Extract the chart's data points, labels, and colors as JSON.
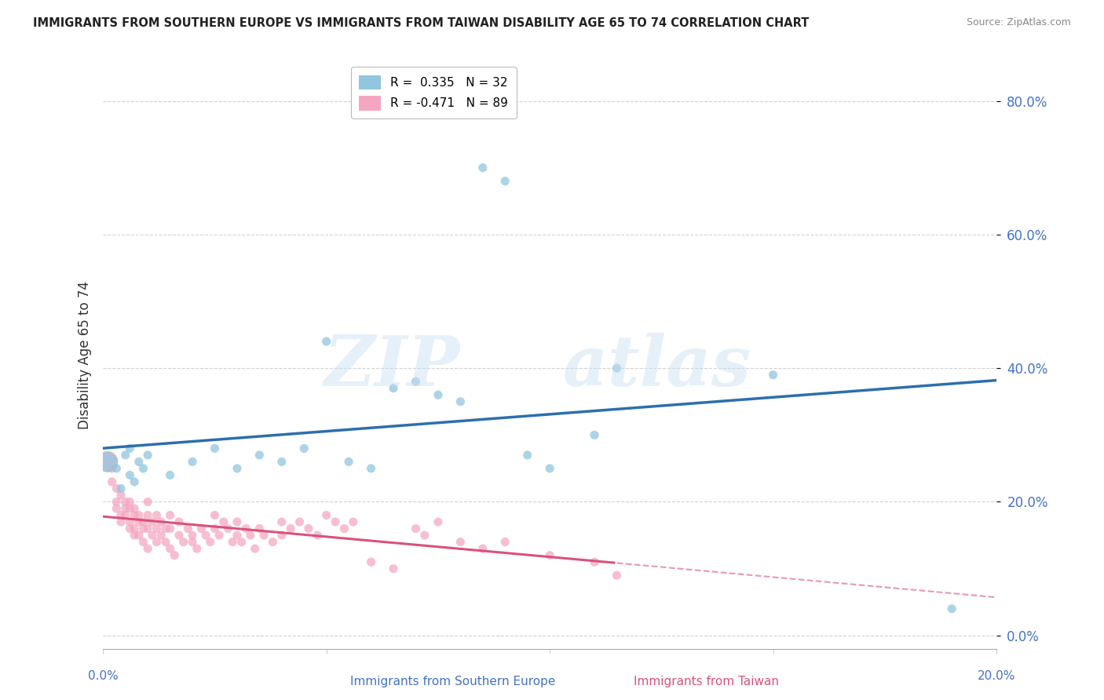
{
  "title": "IMMIGRANTS FROM SOUTHERN EUROPE VS IMMIGRANTS FROM TAIWAN DISABILITY AGE 65 TO 74 CORRELATION CHART",
  "source": "Source: ZipAtlas.com",
  "xlabel_blue": "Immigrants from Southern Europe",
  "xlabel_pink": "Immigrants from Taiwan",
  "ylabel": "Disability Age 65 to 74",
  "blue_R": 0.335,
  "blue_N": 32,
  "pink_R": -0.471,
  "pink_N": 89,
  "xlim": [
    0.0,
    0.2
  ],
  "ylim": [
    -0.02,
    0.86
  ],
  "yticks": [
    0.0,
    0.2,
    0.4,
    0.6,
    0.8
  ],
  "blue_color": "#92c5de",
  "pink_color": "#f4a6c0",
  "blue_line_color": "#2c6fad",
  "pink_line_color": "#d9527a",
  "blue_scatter_x": [
    0.001,
    0.003,
    0.004,
    0.005,
    0.006,
    0.006,
    0.007,
    0.008,
    0.009,
    0.01,
    0.015,
    0.02,
    0.025,
    0.03,
    0.035,
    0.04,
    0.045,
    0.05,
    0.055,
    0.06,
    0.065,
    0.07,
    0.075,
    0.08,
    0.085,
    0.09,
    0.095,
    0.1,
    0.11,
    0.115,
    0.15,
    0.19
  ],
  "blue_scatter_y": [
    0.26,
    0.25,
    0.22,
    0.27,
    0.24,
    0.28,
    0.23,
    0.26,
    0.25,
    0.27,
    0.24,
    0.26,
    0.28,
    0.25,
    0.27,
    0.26,
    0.28,
    0.44,
    0.26,
    0.25,
    0.37,
    0.38,
    0.36,
    0.35,
    0.7,
    0.68,
    0.27,
    0.25,
    0.3,
    0.4,
    0.39,
    0.04
  ],
  "pink_scatter_x": [
    0.001,
    0.002,
    0.002,
    0.003,
    0.003,
    0.003,
    0.004,
    0.004,
    0.004,
    0.005,
    0.005,
    0.005,
    0.006,
    0.006,
    0.006,
    0.006,
    0.007,
    0.007,
    0.007,
    0.007,
    0.008,
    0.008,
    0.008,
    0.009,
    0.009,
    0.009,
    0.01,
    0.01,
    0.01,
    0.01,
    0.011,
    0.011,
    0.012,
    0.012,
    0.012,
    0.013,
    0.013,
    0.014,
    0.014,
    0.015,
    0.015,
    0.015,
    0.016,
    0.017,
    0.017,
    0.018,
    0.019,
    0.02,
    0.02,
    0.021,
    0.022,
    0.023,
    0.024,
    0.025,
    0.025,
    0.026,
    0.027,
    0.028,
    0.029,
    0.03,
    0.03,
    0.031,
    0.032,
    0.033,
    0.034,
    0.035,
    0.036,
    0.038,
    0.04,
    0.04,
    0.042,
    0.044,
    0.046,
    0.048,
    0.05,
    0.052,
    0.054,
    0.056,
    0.06,
    0.065,
    0.07,
    0.072,
    0.075,
    0.08,
    0.085,
    0.09,
    0.1,
    0.11,
    0.115
  ],
  "pink_scatter_y": [
    0.26,
    0.25,
    0.23,
    0.22,
    0.2,
    0.19,
    0.21,
    0.18,
    0.17,
    0.2,
    0.19,
    0.18,
    0.2,
    0.19,
    0.17,
    0.16,
    0.19,
    0.18,
    0.16,
    0.15,
    0.18,
    0.17,
    0.15,
    0.17,
    0.16,
    0.14,
    0.2,
    0.18,
    0.16,
    0.13,
    0.17,
    0.15,
    0.18,
    0.16,
    0.14,
    0.17,
    0.15,
    0.16,
    0.14,
    0.18,
    0.16,
    0.13,
    0.12,
    0.17,
    0.15,
    0.14,
    0.16,
    0.15,
    0.14,
    0.13,
    0.16,
    0.15,
    0.14,
    0.18,
    0.16,
    0.15,
    0.17,
    0.16,
    0.14,
    0.17,
    0.15,
    0.14,
    0.16,
    0.15,
    0.13,
    0.16,
    0.15,
    0.14,
    0.17,
    0.15,
    0.16,
    0.17,
    0.16,
    0.15,
    0.18,
    0.17,
    0.16,
    0.17,
    0.11,
    0.1,
    0.16,
    0.15,
    0.17,
    0.14,
    0.13,
    0.14,
    0.12,
    0.11,
    0.09
  ]
}
